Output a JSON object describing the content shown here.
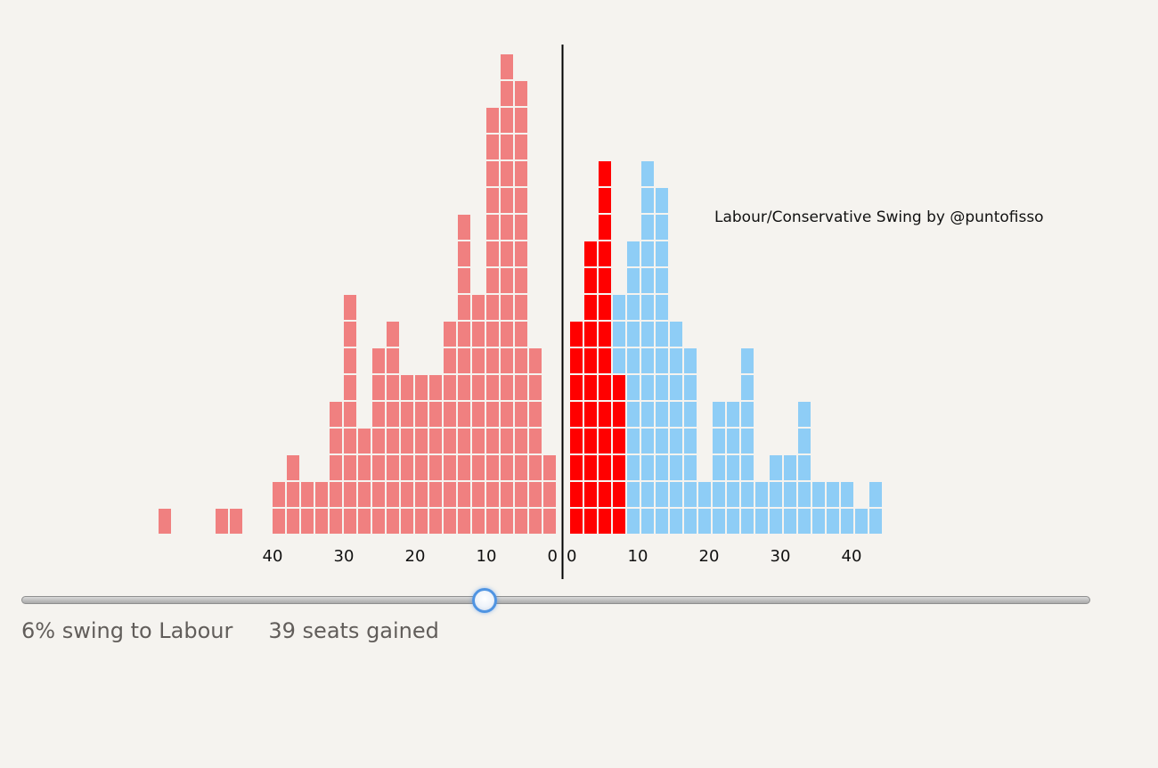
{
  "chart_data": {
    "type": "bar",
    "title": "Labour/Conservative Swing by @puntofisso",
    "x_unit": "% swing",
    "bin_width": 2,
    "ylabel": "",
    "left_series": {
      "side": "left",
      "color": "#f08080",
      "bins": [
        {
          "x": 0,
          "count": 3
        },
        {
          "x": 2,
          "count": 7
        },
        {
          "x": 4,
          "count": 17
        },
        {
          "x": 6,
          "count": 18
        },
        {
          "x": 8,
          "count": 16
        },
        {
          "x": 10,
          "count": 9
        },
        {
          "x": 12,
          "count": 12
        },
        {
          "x": 14,
          "count": 8
        },
        {
          "x": 16,
          "count": 6
        },
        {
          "x": 18,
          "count": 6
        },
        {
          "x": 20,
          "count": 6
        },
        {
          "x": 22,
          "count": 8
        },
        {
          "x": 24,
          "count": 7
        },
        {
          "x": 26,
          "count": 4
        },
        {
          "x": 28,
          "count": 9
        },
        {
          "x": 30,
          "count": 5
        },
        {
          "x": 32,
          "count": 2
        },
        {
          "x": 34,
          "count": 2
        },
        {
          "x": 36,
          "count": 3
        },
        {
          "x": 38,
          "count": 2
        },
        {
          "x": 44,
          "count": 1
        },
        {
          "x": 46,
          "count": 1
        },
        {
          "x": 54,
          "count": 1
        }
      ]
    },
    "right_series": {
      "side": "right",
      "color": "#8ecdf6",
      "highlight_color": "#ff0000",
      "bins": [
        {
          "x": 0,
          "count": 8,
          "highlight": 8
        },
        {
          "x": 2,
          "count": 11,
          "highlight": 11
        },
        {
          "x": 4,
          "count": 14,
          "highlight": 14
        },
        {
          "x": 6,
          "count": 9,
          "highlight": 6
        },
        {
          "x": 8,
          "count": 11,
          "highlight": 0
        },
        {
          "x": 10,
          "count": 14,
          "highlight": 0
        },
        {
          "x": 12,
          "count": 13,
          "highlight": 0
        },
        {
          "x": 14,
          "count": 8,
          "highlight": 0
        },
        {
          "x": 16,
          "count": 7,
          "highlight": 0
        },
        {
          "x": 18,
          "count": 2,
          "highlight": 0
        },
        {
          "x": 20,
          "count": 5,
          "highlight": 0
        },
        {
          "x": 22,
          "count": 5,
          "highlight": 0
        },
        {
          "x": 24,
          "count": 7,
          "highlight": 0
        },
        {
          "x": 26,
          "count": 2,
          "highlight": 0
        },
        {
          "x": 28,
          "count": 3,
          "highlight": 0
        },
        {
          "x": 30,
          "count": 3,
          "highlight": 0
        },
        {
          "x": 32,
          "count": 5,
          "highlight": 0
        },
        {
          "x": 34,
          "count": 2,
          "highlight": 0
        },
        {
          "x": 36,
          "count": 2,
          "highlight": 0
        },
        {
          "x": 38,
          "count": 2,
          "highlight": 0
        },
        {
          "x": 40,
          "count": 1,
          "highlight": 0
        },
        {
          "x": 42,
          "count": 2,
          "highlight": 0
        }
      ]
    },
    "left_ticks": [
      "40",
      "30",
      "20",
      "10",
      "0"
    ],
    "right_ticks": [
      "0",
      "10",
      "20",
      "30",
      "40"
    ],
    "left_tick_values": [
      40,
      30,
      20,
      10,
      0
    ],
    "right_tick_values": [
      0,
      10,
      20,
      30,
      40
    ]
  },
  "slider": {
    "min": -20,
    "max": 40,
    "value": 6
  },
  "readout": {
    "swing": "6% swing to Labour",
    "seats": "39 seats gained"
  }
}
